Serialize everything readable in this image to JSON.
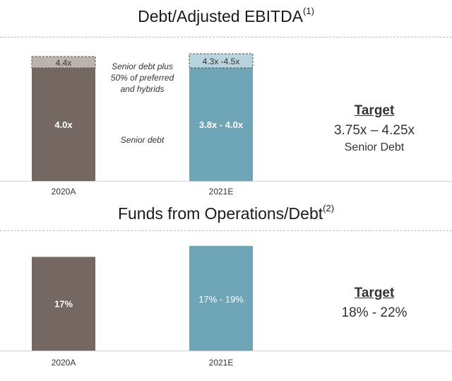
{
  "colors": {
    "actual": "#756862",
    "estimate": "#6ea5b7",
    "actual_hatch": "#bcb3ae",
    "estimate_hatch": "#b8d4de"
  },
  "chart_data": [
    {
      "type": "bar",
      "stacked": true,
      "title": "Debt/Adjusted EBITDA",
      "title_footnote": "(1)",
      "categories": [
        "2020A",
        "2021E"
      ],
      "ylim": [
        0,
        5
      ],
      "series": [
        {
          "name": "Senior debt",
          "values": [
            4.0,
            4.0
          ],
          "labels": [
            "4.0x",
            "3.8x - 4.0x"
          ]
        },
        {
          "name": "Senior debt plus 50% of preferred and hybrids",
          "values": [
            0.4,
            0.5
          ],
          "labels": [
            "4.4x",
            "4.3x -4.5x"
          ]
        }
      ],
      "annotations": [
        "Senior debt plus 50% of preferred and hybrids",
        "Senior debt"
      ],
      "target": {
        "heading": "Target",
        "value": "3.75x – 4.25x",
        "sub": "Senior Debt"
      }
    },
    {
      "type": "bar",
      "title": "Funds from Operations/Debt",
      "title_footnote": "(2)",
      "categories": [
        "2020A",
        "2021E"
      ],
      "ylim": [
        0,
        20
      ],
      "values": [
        17,
        19
      ],
      "labels": [
        "17%",
        "17% - 19%"
      ],
      "target": {
        "heading": "Target",
        "value": "18% - 22%"
      }
    }
  ],
  "annotations": {
    "senior_plus_lines": [
      "Senior debt plus",
      "50% of preferred",
      "and hybrids"
    ],
    "senior": "Senior debt"
  }
}
